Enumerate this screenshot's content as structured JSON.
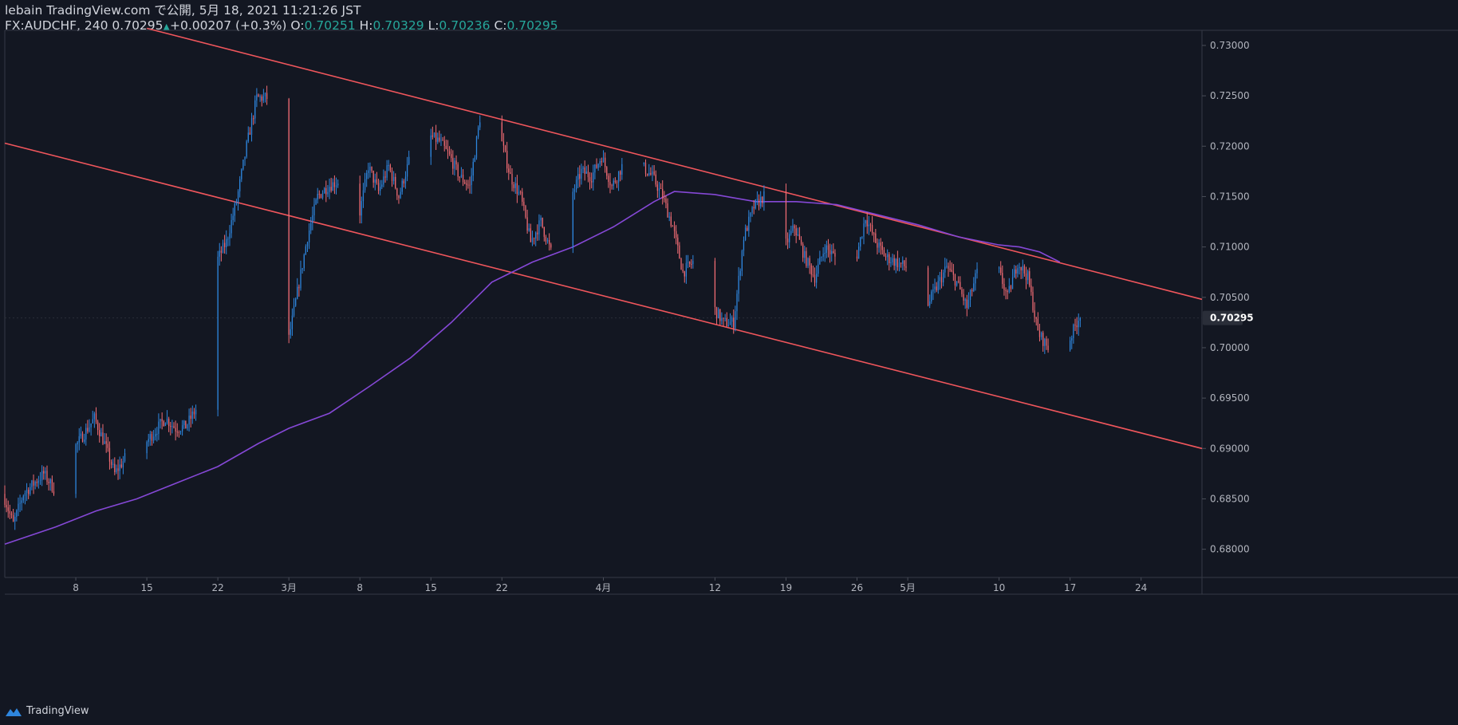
{
  "header": {
    "publish_line": "lebain TradingView.com で公開, 5月 18, 2021 11:21:26 JST",
    "symbol": "FX:AUDCHF, 240",
    "last": "0.70295",
    "change": "+0.00207 (+0.3%)",
    "o_label": "O:",
    "o_value": "0.70251",
    "h_label": "H:",
    "h_value": "0.70329",
    "l_label": "L:",
    "l_value": "0.70236",
    "c_label": "C:",
    "c_value": "0.70295"
  },
  "brand": {
    "name": "TradingView",
    "icon": "tradingview-logo-icon"
  },
  "price_tag": "0.70295",
  "colors": {
    "background": "#131722",
    "up": "#2e86de",
    "down": "#ef6b73",
    "channel": "#f0565c",
    "ma": "#8548d6",
    "axis_text": "#b2b5be",
    "positive_text": "#26a69a"
  },
  "chart_data": {
    "type": "candlestick",
    "symbol": "FX:AUDCHF",
    "interval": "240",
    "ylim": [
      0.6772,
      0.7315
    ],
    "y_ticks": [
      0.73,
      0.725,
      0.72,
      0.715,
      0.71,
      0.705,
      0.7,
      0.695,
      0.69,
      0.685,
      0.68
    ],
    "y_tick_labels": [
      "0.73000",
      "0.72500",
      "0.72000",
      "0.71500",
      "0.71000",
      "0.70500",
      "0.70000",
      "0.69500",
      "0.69000",
      "0.68500",
      "0.68000"
    ],
    "x_range": [
      "2021-02-01",
      "2021-05-30"
    ],
    "x_ticks": [
      {
        "date": "2021-02-08",
        "label": "8"
      },
      {
        "date": "2021-02-15",
        "label": "15"
      },
      {
        "date": "2021-02-22",
        "label": "22"
      },
      {
        "date": "2021-03-01",
        "label": "3月"
      },
      {
        "date": "2021-03-08",
        "label": "8"
      },
      {
        "date": "2021-03-15",
        "label": "15"
      },
      {
        "date": "2021-03-22",
        "label": "22"
      },
      {
        "date": "2021-04-01",
        "label": "4月"
      },
      {
        "date": "2021-04-12",
        "label": "12"
      },
      {
        "date": "2021-04-19",
        "label": "19"
      },
      {
        "date": "2021-04-26",
        "label": "26"
      },
      {
        "date": "2021-05-01",
        "label": "5月"
      },
      {
        "date": "2021-05-10",
        "label": "10"
      },
      {
        "date": "2021-05-17",
        "label": "17"
      },
      {
        "date": "2021-05-24",
        "label": "24"
      }
    ],
    "price_path": [
      [
        "2021-02-01",
        0.6855
      ],
      [
        "2021-02-02",
        0.6825
      ],
      [
        "2021-02-03",
        0.6855
      ],
      [
        "2021-02-05",
        0.6875
      ],
      [
        "2021-02-06",
        0.686
      ],
      [
        "2021-02-08",
        0.69
      ],
      [
        "2021-02-10",
        0.693
      ],
      [
        "2021-02-11",
        0.6905
      ],
      [
        "2021-02-12",
        0.6875
      ],
      [
        "2021-02-13",
        0.689
      ],
      [
        "2021-02-15",
        0.6905
      ],
      [
        "2021-02-17",
        0.693
      ],
      [
        "2021-02-18",
        0.692
      ],
      [
        "2021-02-19",
        0.6922
      ],
      [
        "2021-02-21",
        0.6955
      ],
      [
        "2021-02-22",
        0.7085
      ],
      [
        "2021-02-23",
        0.7105
      ],
      [
        "2021-02-24",
        0.7145
      ],
      [
        "2021-02-25",
        0.72
      ],
      [
        "2021-02-26",
        0.7248
      ],
      [
        "2021-02-27",
        0.7248
      ],
      [
        "2021-02-28",
        0.7135
      ],
      [
        "2021-03-01",
        0.7
      ],
      [
        "2021-03-02",
        0.7055
      ],
      [
        "2021-03-03",
        0.711
      ],
      [
        "2021-03-04",
        0.715
      ],
      [
        "2021-03-05",
        0.716
      ],
      [
        "2021-03-06",
        0.7165
      ],
      [
        "2021-03-07",
        0.7185
      ],
      [
        "2021-03-08",
        0.7125
      ],
      [
        "2021-03-09",
        0.718
      ],
      [
        "2021-03-10",
        0.7155
      ],
      [
        "2021-03-11",
        0.718
      ],
      [
        "2021-03-12",
        0.715
      ],
      [
        "2021-03-13",
        0.7185
      ],
      [
        "2021-03-14",
        0.721
      ],
      [
        "2021-03-15",
        0.721
      ],
      [
        "2021-03-16",
        0.7205
      ],
      [
        "2021-03-17",
        0.719
      ],
      [
        "2021-03-18",
        0.717
      ],
      [
        "2021-03-19",
        0.716
      ],
      [
        "2021-03-20",
        0.7228
      ],
      [
        "2021-03-21",
        0.7185
      ],
      [
        "2021-03-22",
        0.721
      ],
      [
        "2021-03-23",
        0.717
      ],
      [
        "2021-03-24",
        0.715
      ],
      [
        "2021-03-25",
        0.7105
      ],
      [
        "2021-03-26",
        0.7125
      ],
      [
        "2021-03-27",
        0.7095
      ],
      [
        "2021-03-28",
        0.7115
      ],
      [
        "2021-03-29",
        0.715
      ],
      [
        "2021-03-30",
        0.7175
      ],
      [
        "2021-03-31",
        0.717
      ],
      [
        "2021-04-01",
        0.719
      ],
      [
        "2021-04-02",
        0.716
      ],
      [
        "2021-04-03",
        0.718
      ],
      [
        "2021-04-04",
        0.716
      ],
      [
        "2021-04-05",
        0.718
      ],
      [
        "2021-04-06",
        0.717
      ],
      [
        "2021-04-07",
        0.715
      ],
      [
        "2021-04-08",
        0.712
      ],
      [
        "2021-04-09",
        0.7075
      ],
      [
        "2021-04-10",
        0.7085
      ],
      [
        "2021-04-11",
        0.706
      ],
      [
        "2021-04-12",
        0.704
      ],
      [
        "2021-04-13",
        0.7025
      ],
      [
        "2021-04-14",
        0.7025
      ],
      [
        "2021-04-15",
        0.711
      ],
      [
        "2021-04-16",
        0.714
      ],
      [
        "2021-04-17",
        0.715
      ],
      [
        "2021-04-18",
        0.7115
      ],
      [
        "2021-04-19",
        0.71
      ],
      [
        "2021-04-20",
        0.712
      ],
      [
        "2021-04-21",
        0.709
      ],
      [
        "2021-04-22",
        0.707
      ],
      [
        "2021-04-23",
        0.71
      ],
      [
        "2021-04-24",
        0.709
      ],
      [
        "2021-04-25",
        0.707
      ],
      [
        "2021-04-26",
        0.7085
      ],
      [
        "2021-04-27",
        0.713
      ],
      [
        "2021-04-28",
        0.7105
      ],
      [
        "2021-04-29",
        0.709
      ],
      [
        "2021-04-30",
        0.7085
      ],
      [
        "2021-05-01",
        0.708
      ],
      [
        "2021-05-02",
        0.706
      ],
      [
        "2021-05-03",
        0.704
      ],
      [
        "2021-05-04",
        0.706
      ],
      [
        "2021-05-05",
        0.708
      ],
      [
        "2021-05-06",
        0.7065
      ],
      [
        "2021-05-07",
        0.704
      ],
      [
        "2021-05-08",
        0.7075
      ],
      [
        "2021-05-09",
        0.706
      ],
      [
        "2021-05-10",
        0.708
      ],
      [
        "2021-05-11",
        0.705
      ],
      [
        "2021-05-12",
        0.7085
      ],
      [
        "2021-05-13",
        0.707
      ],
      [
        "2021-05-14",
        0.7015
      ],
      [
        "2021-05-15",
        0.7
      ],
      [
        "2021-05-16",
        0.699
      ],
      [
        "2021-05-17",
        0.7005
      ],
      [
        "2021-05-18",
        0.70295
      ]
    ],
    "moving_average": [
      [
        "2021-02-01",
        0.6805
      ],
      [
        "2021-02-06",
        0.6822
      ],
      [
        "2021-02-10",
        0.6838
      ],
      [
        "2021-02-14",
        0.685
      ],
      [
        "2021-02-18",
        0.6866
      ],
      [
        "2021-02-22",
        0.6882
      ],
      [
        "2021-02-26",
        0.6905
      ],
      [
        "2021-03-01",
        0.692
      ],
      [
        "2021-03-05",
        0.6935
      ],
      [
        "2021-03-09",
        0.6962
      ],
      [
        "2021-03-13",
        0.699
      ],
      [
        "2021-03-17",
        0.7025
      ],
      [
        "2021-03-21",
        0.7065
      ],
      [
        "2021-03-25",
        0.7085
      ],
      [
        "2021-03-29",
        0.71
      ],
      [
        "2021-04-02",
        0.712
      ],
      [
        "2021-04-06",
        0.7145
      ],
      [
        "2021-04-08",
        0.7155
      ],
      [
        "2021-04-12",
        0.7152
      ],
      [
        "2021-04-16",
        0.7145
      ],
      [
        "2021-04-20",
        0.7145
      ],
      [
        "2021-04-24",
        0.7142
      ],
      [
        "2021-04-28",
        0.7132
      ],
      [
        "2021-05-02",
        0.7122
      ],
      [
        "2021-05-06",
        0.711
      ],
      [
        "2021-05-10",
        0.7102
      ],
      [
        "2021-05-12",
        0.71
      ],
      [
        "2021-05-14",
        0.7095
      ],
      [
        "2021-05-16",
        0.7085
      ]
    ],
    "channel_lines": [
      {
        "name": "upper",
        "from": [
          "2021-02-15",
          0.7317
        ],
        "to": [
          "2021-05-30",
          0.7048
        ]
      },
      {
        "name": "lower",
        "from": [
          "2021-02-01",
          0.7203
        ],
        "to": [
          "2021-05-30",
          0.69
        ]
      }
    ],
    "last_price": 0.70295,
    "grid": false
  }
}
